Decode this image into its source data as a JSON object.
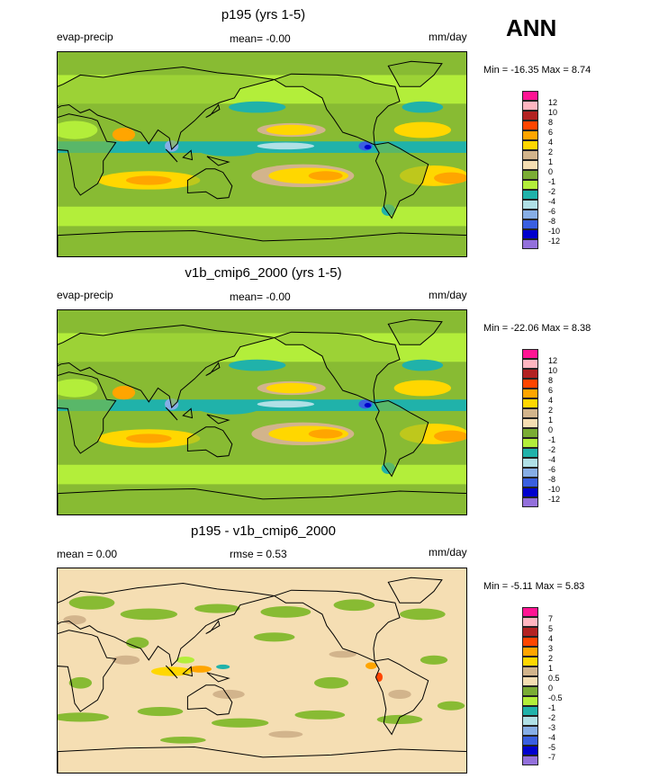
{
  "season": "ANN",
  "colors": {
    "frame": "#000000",
    "coast": "#000000"
  },
  "chart_data": [
    {
      "type": "heatmap",
      "title": "p195 (yrs 1-5)",
      "left_label": "evap-precip",
      "center_label": "mean=  -0.00",
      "units": "mm/day",
      "min_max": "Min = -16.35 Max =   8.74",
      "stats": {
        "min": -16.35,
        "max": 8.74,
        "mean": -0.0
      },
      "colorbar": {
        "labels": [
          "12",
          "10",
          "8",
          "6",
          "4",
          "2",
          "1",
          "0",
          "-1",
          "-2",
          "-4",
          "-6",
          "-8",
          "-10",
          "-12"
        ],
        "colors": [
          "#ff1493",
          "#ffb6c1",
          "#b22222",
          "#ff4500",
          "#ffa500",
          "#ffd700",
          "#d2b48c",
          "#f5deb3",
          "#7aac34",
          "#b3ee3a",
          "#20b2aa",
          "#b0e0e6",
          "#87aee6",
          "#3a5fe0",
          "#0000cd",
          "#9370db"
        ]
      },
      "field": "model"
    },
    {
      "type": "heatmap",
      "title": "v1b_cmip6_2000 (yrs 1-5)",
      "left_label": "evap-precip",
      "center_label": "mean=  -0.00",
      "units": "mm/day",
      "min_max": "Min = -22.06 Max =   8.38",
      "stats": {
        "min": -22.06,
        "max": 8.38,
        "mean": -0.0
      },
      "colorbar": {
        "labels": [
          "12",
          "10",
          "8",
          "6",
          "4",
          "2",
          "1",
          "0",
          "-1",
          "-2",
          "-4",
          "-6",
          "-8",
          "-10",
          "-12"
        ],
        "colors": [
          "#ff1493",
          "#ffb6c1",
          "#b22222",
          "#ff4500",
          "#ffa500",
          "#ffd700",
          "#d2b48c",
          "#f5deb3",
          "#7aac34",
          "#b3ee3a",
          "#20b2aa",
          "#b0e0e6",
          "#87aee6",
          "#3a5fe0",
          "#0000cd",
          "#9370db"
        ]
      },
      "field": "model"
    },
    {
      "type": "heatmap",
      "title": "p195 - v1b_cmip6_2000",
      "left_label": "mean =   0.00",
      "center_label": "rmse =   0.53",
      "units": "mm/day",
      "min_max": "Min =  -5.11 Max =   5.83",
      "stats": {
        "min": -5.11,
        "max": 5.83,
        "mean": 0.0,
        "rmse": 0.53
      },
      "colorbar": {
        "labels": [
          "7",
          "5",
          "4",
          "3",
          "2",
          "1",
          "0.5",
          "0",
          "-0.5",
          "-1",
          "-2",
          "-3",
          "-4",
          "-5",
          "-7"
        ],
        "colors": [
          "#ff1493",
          "#ffb6c1",
          "#b22222",
          "#ff4500",
          "#ffa500",
          "#ffd700",
          "#d2b48c",
          "#f5deb3",
          "#7aac34",
          "#b3ee3a",
          "#20b2aa",
          "#b0e0e6",
          "#87aee6",
          "#3a5fe0",
          "#0000cd",
          "#9370db"
        ]
      },
      "field": "diff"
    }
  ]
}
